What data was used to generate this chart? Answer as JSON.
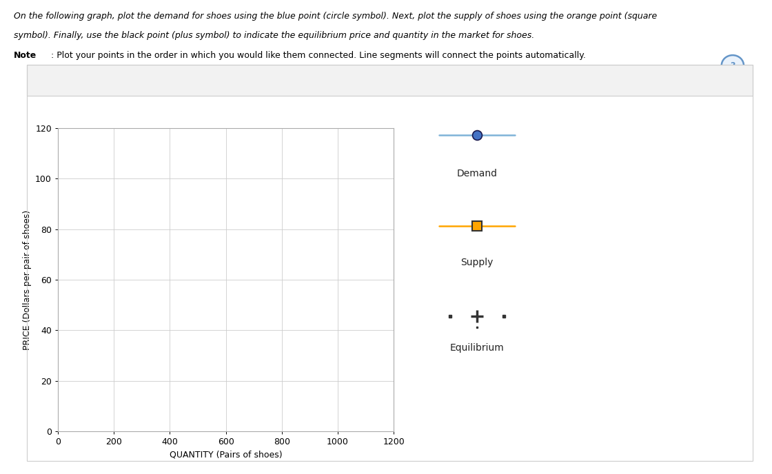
{
  "line1": "On the following graph, plot the demand for shoes using the blue point (circle symbol). Next, plot the supply of shoes using the orange point (square",
  "line2": "symbol). Finally, use the black point (plus symbol) to indicate the equilibrium price and quantity in the market for shoes.",
  "note_bold": "Note",
  "note_rest": ": Plot your points in the order in which you would like them connected. Line segments will connect the points automatically.",
  "xlabel": "QUANTITY (Pairs of shoes)",
  "ylabel": "PRICE (Dollars per pair of shoes)",
  "xlim": [
    0,
    1200
  ],
  "ylim": [
    0,
    120
  ],
  "xticks": [
    0,
    200,
    400,
    600,
    800,
    1000,
    1200
  ],
  "yticks": [
    0,
    20,
    40,
    60,
    80,
    100,
    120
  ],
  "demand_line_color": "#7EB3D8",
  "demand_marker_face": "#4472C4",
  "demand_marker_edge": "#1a1a4e",
  "supply_line_color": "#FFA500",
  "supply_marker_face": "#FFA500",
  "supply_marker_edge": "#333333",
  "equil_color": "#333333",
  "grid_color": "#CCCCCC",
  "plot_bg": "#FFFFFF",
  "outer_border_color": "#CCCCCC",
  "header_bg": "#F5F5F5",
  "question_circle_color": "#6495C8",
  "legend_labels": [
    "Demand",
    "Supply",
    "Equilibrium"
  ],
  "text_fontsize": 9,
  "axis_fontsize": 9,
  "tick_fontsize": 9,
  "legend_fontsize": 10,
  "marker_size": 10,
  "line_width": 1.8
}
